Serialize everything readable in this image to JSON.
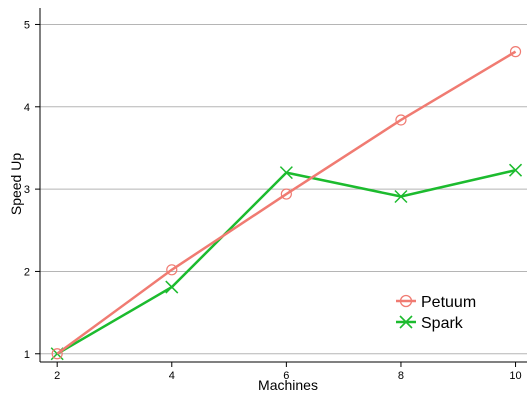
{
  "chart_data": {
    "type": "line",
    "title": "",
    "xlabel": "Machines",
    "ylabel": "Speed Up",
    "x": [
      2,
      4,
      6,
      8,
      10
    ],
    "xticks": [
      "2",
      "4",
      "6",
      "8",
      "10"
    ],
    "yticks": [
      "1",
      "2",
      "3",
      "4",
      "5"
    ],
    "xlim": [
      1.7,
      10.2
    ],
    "ylim": [
      0.9,
      5.2
    ],
    "grid": "horizontal",
    "legend_position": "lower-right",
    "series": [
      {
        "name": "Petuum",
        "color": "#f07b72",
        "marker": "circle",
        "values": [
          1.0,
          2.02,
          2.94,
          3.84,
          4.67
        ]
      },
      {
        "name": "Spark",
        "color": "#1cbb2e",
        "marker": "x",
        "values": [
          1.0,
          1.81,
          3.2,
          2.91,
          3.23
        ]
      }
    ]
  }
}
